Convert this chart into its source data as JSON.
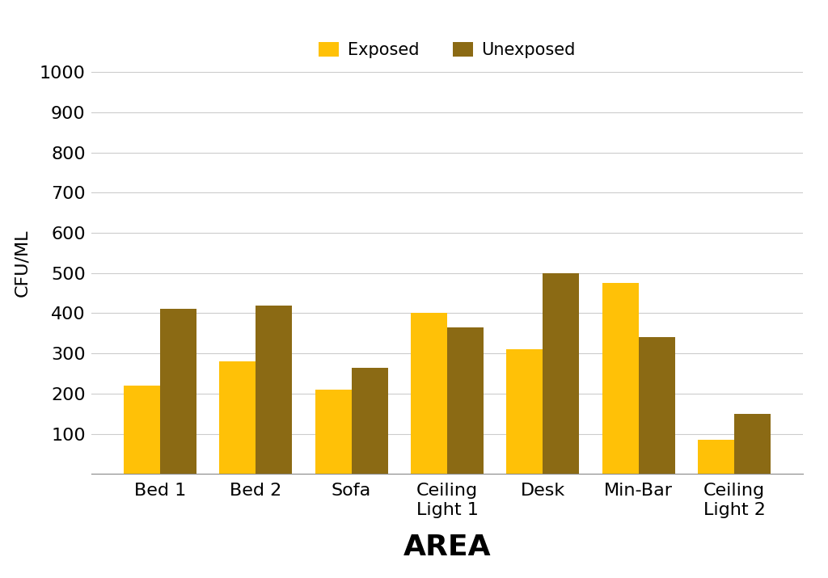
{
  "categories": [
    "Bed 1",
    "Bed 2",
    "Sofa",
    "Ceiling\nLight 1",
    "Desk",
    "Min-Bar",
    "Ceiling\nLight 2"
  ],
  "exposed": [
    220,
    280,
    210,
    400,
    310,
    475,
    85
  ],
  "unexposed": [
    410,
    420,
    265,
    365,
    500,
    340,
    150
  ],
  "exposed_color": "#FFC107",
  "unexposed_color": "#8B6A14",
  "xlabel": "AREA",
  "ylabel": "CFU/ML",
  "ylim": [
    0,
    1050
  ],
  "yticks": [
    100,
    200,
    300,
    400,
    500,
    600,
    700,
    800,
    900,
    1000
  ],
  "legend_labels": [
    "Exposed",
    "Unexposed"
  ],
  "bar_width": 0.38,
  "background_color": "#ffffff",
  "xlabel_fontsize": 26,
  "ylabel_fontsize": 16,
  "tick_fontsize": 16,
  "legend_fontsize": 15
}
